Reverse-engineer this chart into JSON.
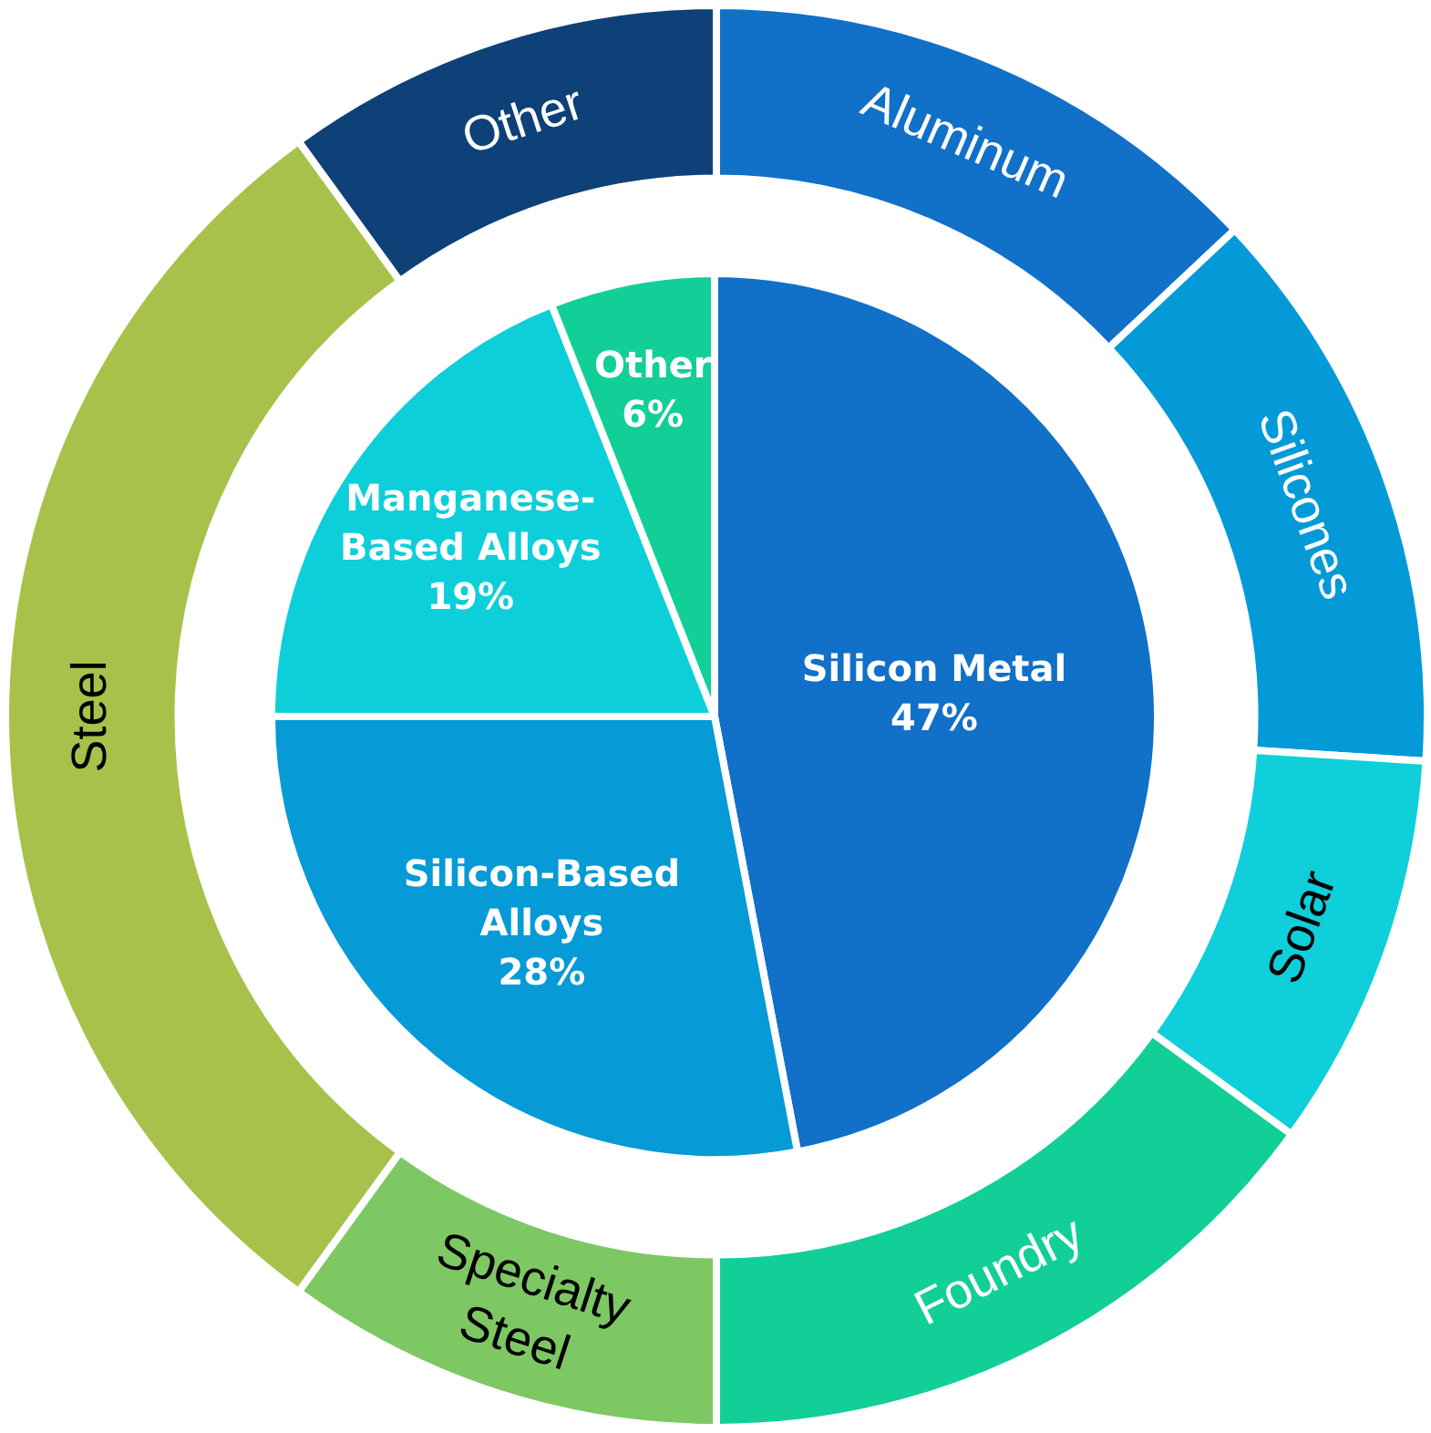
{
  "chart_data": [
    {
      "type": "pie",
      "categories": [
        "Silicon Metal",
        "Silicon-Based Alloys",
        "Manganese-Based Alloys",
        "Other"
      ],
      "values": [
        47,
        28,
        19,
        6
      ],
      "colors": [
        "#1170c8",
        "#069ad6",
        "#0dcfd9",
        "#12cf98"
      ],
      "value_labels": [
        "47%",
        "28%",
        "19%",
        "6%"
      ],
      "legend": false
    },
    {
      "type": "donut",
      "categories": [
        "Aluminum",
        "Silicones",
        "Solar",
        "Foundry",
        "Specialty Steel",
        "Steel",
        "Other"
      ],
      "values": [
        13,
        13,
        9,
        15,
        10,
        30,
        10
      ],
      "colors": [
        "#1170c8",
        "#049ad8",
        "#0ecfda",
        "#12cf98",
        "#7ec863",
        "#a8c14a",
        "#0e4177"
      ],
      "legend": false
    }
  ]
}
